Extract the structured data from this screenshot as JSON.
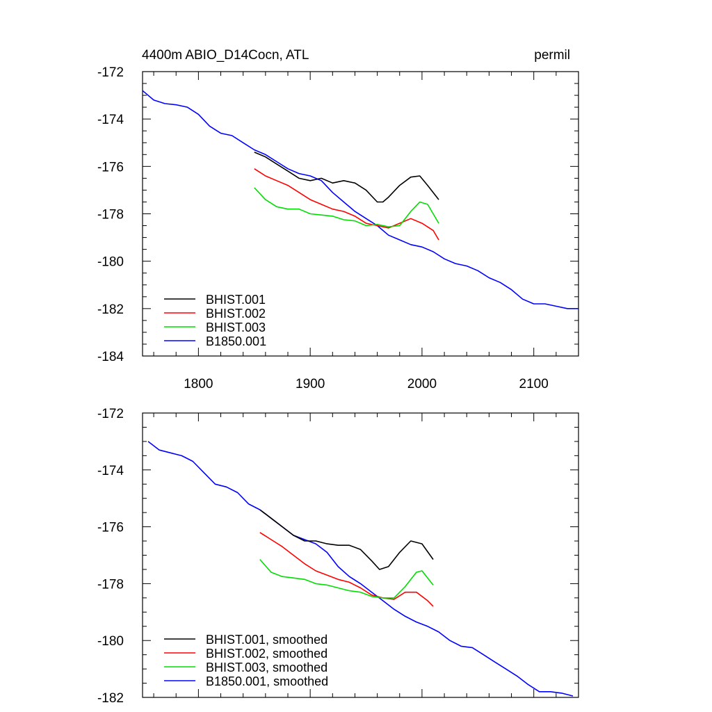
{
  "chart_data": [
    {
      "type": "line",
      "title": "4400m ABIO_D14Cocn, ATL",
      "units": "permil",
      "xlim": [
        1750,
        2140
      ],
      "ylim": [
        -184,
        -172
      ],
      "xticks": [
        1800,
        1900,
        2000,
        2100
      ],
      "yticks": [
        -172,
        -174,
        -176,
        -178,
        -180,
        -182,
        -184
      ],
      "show_xtick_labels": true,
      "legend_position": "bottom-left",
      "series": [
        {
          "name": "BHIST.001",
          "color": "#000000",
          "x": [
            1850,
            1860,
            1870,
            1880,
            1890,
            1900,
            1910,
            1920,
            1930,
            1940,
            1950,
            1960,
            1965,
            1970,
            1980,
            1990,
            1998,
            2005,
            2015
          ],
          "y": [
            -175.4,
            -175.6,
            -175.9,
            -176.2,
            -176.5,
            -176.6,
            -176.5,
            -176.7,
            -176.6,
            -176.7,
            -177.0,
            -177.5,
            -177.5,
            -177.3,
            -176.8,
            -176.45,
            -176.4,
            -176.8,
            -177.4
          ]
        },
        {
          "name": "BHIST.002",
          "color": "#ff0000",
          "x": [
            1850,
            1860,
            1870,
            1880,
            1890,
            1900,
            1910,
            1920,
            1930,
            1940,
            1950,
            1960,
            1970,
            1980,
            1990,
            2000,
            2010,
            2015
          ],
          "y": [
            -176.1,
            -176.4,
            -176.6,
            -176.8,
            -177.1,
            -177.4,
            -177.6,
            -177.8,
            -177.9,
            -178.1,
            -178.4,
            -178.5,
            -178.6,
            -178.4,
            -178.2,
            -178.4,
            -178.7,
            -179.1
          ]
        },
        {
          "name": "BHIST.003",
          "color": "#00dd00",
          "x": [
            1850,
            1860,
            1870,
            1880,
            1890,
            1900,
            1910,
            1920,
            1930,
            1940,
            1950,
            1960,
            1970,
            1980,
            1990,
            1998,
            2005,
            2015
          ],
          "y": [
            -176.9,
            -177.4,
            -177.7,
            -177.8,
            -177.8,
            -178.0,
            -178.05,
            -178.1,
            -178.25,
            -178.3,
            -178.5,
            -178.45,
            -178.55,
            -178.5,
            -177.9,
            -177.5,
            -177.6,
            -178.4
          ]
        },
        {
          "name": "B1850.001",
          "color": "#0000ff",
          "x": [
            1750,
            1760,
            1770,
            1780,
            1790,
            1800,
            1810,
            1820,
            1830,
            1840,
            1850,
            1860,
            1870,
            1880,
            1890,
            1900,
            1910,
            1920,
            1930,
            1940,
            1950,
            1960,
            1970,
            1980,
            1990,
            2000,
            2010,
            2020,
            2030,
            2040,
            2050,
            2060,
            2070,
            2080,
            2090,
            2100,
            2110,
            2120,
            2130,
            2140
          ],
          "y": [
            -172.8,
            -173.2,
            -173.35,
            -173.4,
            -173.5,
            -173.8,
            -174.3,
            -174.6,
            -174.7,
            -175.0,
            -175.3,
            -175.5,
            -175.8,
            -176.1,
            -176.3,
            -176.4,
            -176.6,
            -177.1,
            -177.5,
            -177.9,
            -178.2,
            -178.5,
            -178.9,
            -179.1,
            -179.3,
            -179.4,
            -179.6,
            -179.9,
            -180.1,
            -180.2,
            -180.4,
            -180.7,
            -180.9,
            -181.2,
            -181.6,
            -181.8,
            -181.8,
            -181.9,
            -182.0,
            -182.0
          ]
        }
      ]
    },
    {
      "type": "line",
      "title": "",
      "units": "",
      "xlim": [
        1750,
        2140
      ],
      "ylim": [
        -182,
        -172
      ],
      "xticks": [
        1800,
        1900,
        2000,
        2100
      ],
      "yticks": [
        -172,
        -174,
        -176,
        -178,
        -180,
        -182
      ],
      "show_xtick_labels": false,
      "legend_position": "bottom-left",
      "series": [
        {
          "name": "BHIST.001, smoothed",
          "color": "#000000",
          "x": [
            1855,
            1865,
            1875,
            1885,
            1895,
            1905,
            1915,
            1925,
            1935,
            1945,
            1955,
            1962,
            1970,
            1980,
            1990,
            2000,
            2010
          ],
          "y": [
            -175.4,
            -175.7,
            -176.0,
            -176.3,
            -176.5,
            -176.5,
            -176.6,
            -176.65,
            -176.65,
            -176.8,
            -177.2,
            -177.5,
            -177.4,
            -176.9,
            -176.5,
            -176.6,
            -177.15
          ]
        },
        {
          "name": "BHIST.002, smoothed",
          "color": "#ff0000",
          "x": [
            1855,
            1865,
            1875,
            1885,
            1895,
            1905,
            1915,
            1925,
            1935,
            1945,
            1955,
            1965,
            1975,
            1985,
            1995,
            2005,
            2010
          ],
          "y": [
            -176.2,
            -176.45,
            -176.7,
            -177.0,
            -177.3,
            -177.55,
            -177.7,
            -177.85,
            -177.95,
            -178.15,
            -178.4,
            -178.5,
            -178.55,
            -178.3,
            -178.3,
            -178.6,
            -178.8
          ]
        },
        {
          "name": "BHIST.003, smoothed",
          "color": "#00dd00",
          "x": [
            1855,
            1865,
            1875,
            1885,
            1895,
            1905,
            1915,
            1925,
            1935,
            1945,
            1955,
            1965,
            1975,
            1985,
            1995,
            2000,
            2010
          ],
          "y": [
            -177.15,
            -177.6,
            -177.75,
            -177.8,
            -177.85,
            -178.0,
            -178.05,
            -178.15,
            -178.25,
            -178.3,
            -178.45,
            -178.5,
            -178.5,
            -178.1,
            -177.6,
            -177.55,
            -178.05
          ]
        },
        {
          "name": "B1850.001, smoothed",
          "color": "#0000ff",
          "x": [
            1755,
            1765,
            1775,
            1785,
            1795,
            1805,
            1815,
            1825,
            1835,
            1845,
            1855,
            1865,
            1875,
            1885,
            1895,
            1905,
            1915,
            1925,
            1935,
            1945,
            1955,
            1965,
            1975,
            1985,
            1995,
            2005,
            2015,
            2025,
            2035,
            2045,
            2055,
            2065,
            2075,
            2085,
            2095,
            2105,
            2115,
            2125,
            2135
          ],
          "y": [
            -173.0,
            -173.3,
            -173.4,
            -173.5,
            -173.7,
            -174.1,
            -174.5,
            -174.6,
            -174.8,
            -175.2,
            -175.4,
            -175.7,
            -176.0,
            -176.3,
            -176.45,
            -176.6,
            -176.9,
            -177.4,
            -177.75,
            -178.0,
            -178.3,
            -178.6,
            -178.9,
            -179.15,
            -179.35,
            -179.5,
            -179.7,
            -180.0,
            -180.2,
            -180.25,
            -180.5,
            -180.75,
            -181.0,
            -181.25,
            -181.55,
            -181.8,
            -181.8,
            -181.85,
            -181.95
          ]
        }
      ]
    }
  ]
}
